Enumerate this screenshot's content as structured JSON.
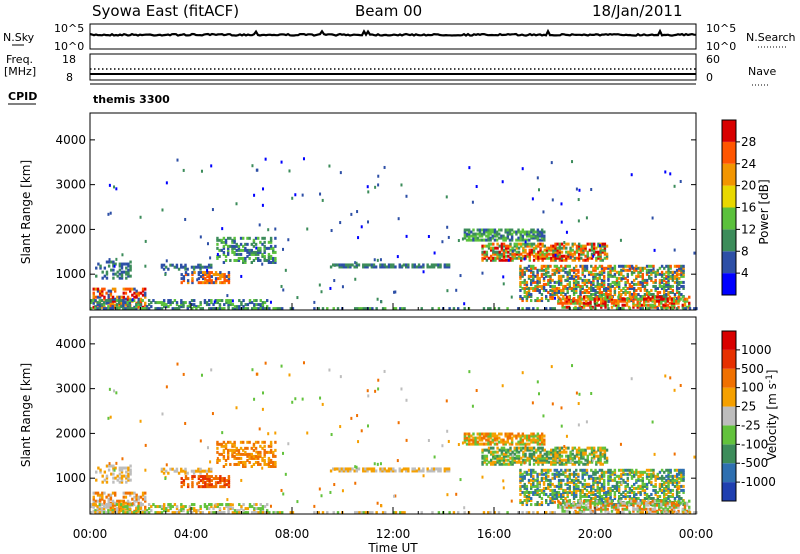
{
  "header": {
    "title": "Syowa East (fitACF)",
    "beam": "Beam 00",
    "date": "18/Jan/2011"
  },
  "panels": {
    "nsky": {
      "left_label": "N.Sky",
      "ticks_left": [
        "10^5",
        "10^0"
      ],
      "right_label": "N.Search",
      "ticks_right": [
        "10^5",
        "10^0"
      ]
    },
    "freq": {
      "left_label_1": "Freq.",
      "left_label_2": "[MHz]",
      "ticks_left": [
        "18",
        "8"
      ],
      "right_label": "Nave",
      "ticks_right": [
        "60",
        "0"
      ]
    },
    "cpid": {
      "label": "CPID",
      "value": "themis 3300"
    }
  },
  "chart_data": [
    {
      "type": "heatmap",
      "name": "power",
      "ylabel": "Slant Range [km]",
      "yticks": [
        "1000",
        "2000",
        "3000",
        "4000"
      ],
      "ylim": [
        200,
        4600
      ],
      "x_ticks": [
        "00:00",
        "04:00",
        "08:00",
        "12:00",
        "16:00",
        "20:00",
        "00:00"
      ],
      "xlim_hours": [
        0,
        24
      ],
      "colorbar": {
        "label": "Power [dB]",
        "ticks": [
          "4",
          "8",
          "12",
          "16",
          "20",
          "24",
          "28"
        ],
        "colors": [
          "#0000ff",
          "#2d4fa6",
          "#3c8c5a",
          "#5bc13c",
          "#e8d800",
          "#f29500",
          "#ff5500",
          "#d80000"
        ]
      }
    },
    {
      "type": "heatmap",
      "name": "velocity",
      "ylabel": "Slant Range [km]",
      "yticks": [
        "1000",
        "2000",
        "3000",
        "4000"
      ],
      "ylim": [
        200,
        4600
      ],
      "x_ticks": [
        "00:00",
        "04:00",
        "08:00",
        "12:00",
        "16:00",
        "20:00",
        "00:00"
      ],
      "xlabel": "Time UT",
      "xlim_hours": [
        0,
        24
      ],
      "colorbar": {
        "label": "Velocity [m s^-1]",
        "ticks": [
          "1000",
          "500",
          "100",
          "25",
          "-25",
          "-100",
          "-500",
          "-1000"
        ],
        "colors": [
          "#1f3fb0",
          "#2e6fb0",
          "#3c8c5a",
          "#62c23c",
          "#bdbdbd",
          "#f5a000",
          "#f07000",
          "#e63000",
          "#d80000"
        ]
      }
    }
  ]
}
